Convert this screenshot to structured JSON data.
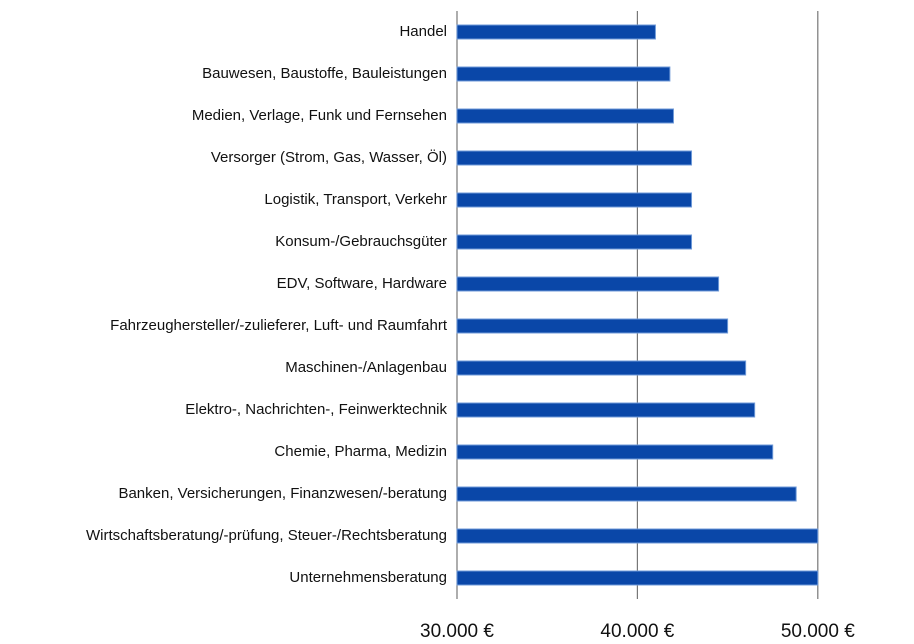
{
  "chart_data": {
    "type": "barh",
    "categories": [
      "Handel",
      "Bauwesen, Baustoffe, Bauleistungen",
      "Medien, Verlage, Funk und Fernsehen",
      "Versorger (Strom, Gas, Wasser, Öl)",
      "Logistik, Transport, Verkehr",
      "Konsum-/Gebrauchsgüter",
      "EDV, Software, Hardware",
      "Fahrzeughersteller/-zulieferer, Luft- und Raumfahrt",
      "Maschinen-/Anlagenbau",
      "Elektro-, Nachrichten-, Feinwerktechnik",
      "Chemie, Pharma, Medizin",
      "Banken, Versicherungen, Finanzwesen/-beratung",
      "Wirtschaftsberatung/-prüfung, Steuer-/Rechtsberatung",
      "Unternehmensberatung"
    ],
    "values": [
      41000,
      41800,
      42000,
      43000,
      43000,
      43000,
      44500,
      45000,
      46000,
      46500,
      47500,
      48800,
      50000,
      50000
    ],
    "color": "#0a47a8",
    "xlim": [
      30000,
      55000
    ],
    "xticks": [
      {
        "value": 30000,
        "label": "30.000 €"
      },
      {
        "value": 40000,
        "label": "40.000 €"
      },
      {
        "value": 50000,
        "label": "50.000 €"
      }
    ],
    "grid": true
  }
}
